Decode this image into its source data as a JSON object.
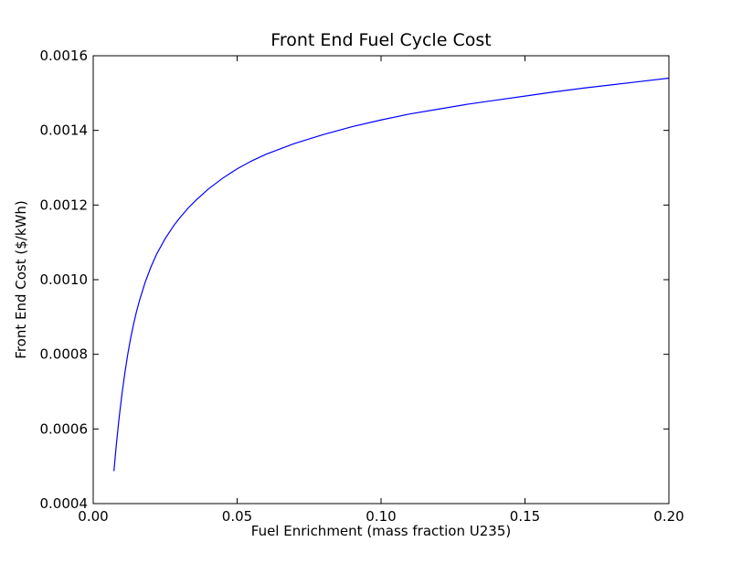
{
  "chart_data": {
    "type": "line",
    "title": "Front End Fuel Cycle Cost",
    "xlabel": "Fuel Enrichment (mass fraction U235)",
    "ylabel": "Front End Cost ($/kWh)",
    "xlim": [
      0.0,
      0.2
    ],
    "ylim": [
      0.0004,
      0.0016
    ],
    "x_ticks": [
      "0.00",
      "0.05",
      "0.10",
      "0.15",
      "0.20"
    ],
    "y_ticks": [
      "0.0004",
      "0.0006",
      "0.0008",
      "0.0010",
      "0.0012",
      "0.0014",
      "0.0016"
    ],
    "grid": false,
    "line_color": "#0000ff",
    "series": [
      {
        "x": [
          0.0072,
          0.008,
          0.009,
          0.01,
          0.011,
          0.012,
          0.013,
          0.014,
          0.015,
          0.016,
          0.018,
          0.02,
          0.022,
          0.025,
          0.028,
          0.03,
          0.033,
          0.036,
          0.04,
          0.045,
          0.05,
          0.055,
          0.06,
          0.07,
          0.08,
          0.09,
          0.1,
          0.11,
          0.12,
          0.13,
          0.14,
          0.15,
          0.16,
          0.17,
          0.18,
          0.19,
          0.2
        ],
        "y": [
          0.000487,
          0.000555,
          0.00063,
          0.000694,
          0.00075,
          0.0008,
          0.000843,
          0.00088,
          0.000913,
          0.000942,
          0.000992,
          0.001033,
          0.001068,
          0.00111,
          0.001145,
          0.001165,
          0.001192,
          0.001215,
          0.001243,
          0.001272,
          0.001297,
          0.001318,
          0.001336,
          0.001365,
          0.001389,
          0.00141,
          0.001428,
          0.001444,
          0.001457,
          0.00147,
          0.001481,
          0.001492,
          0.001503,
          0.001513,
          0.001522,
          0.001531,
          0.00154
        ]
      }
    ]
  }
}
